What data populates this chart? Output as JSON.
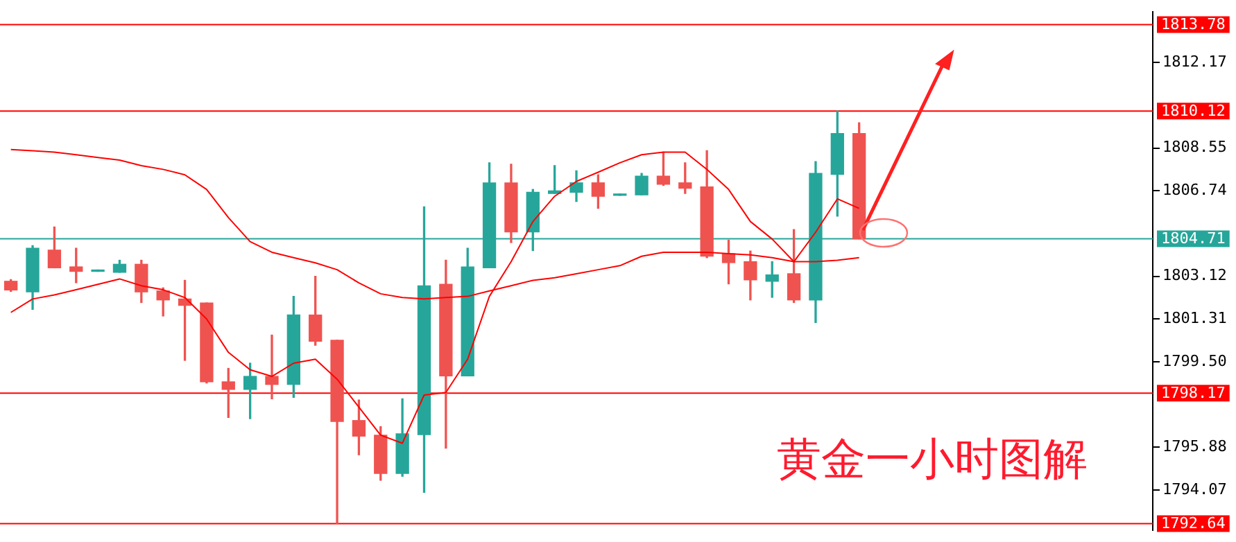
{
  "chart_data": {
    "type": "candlestick",
    "title": "黄金一小时图解",
    "categories": [
      null,
      null,
      null,
      null,
      null,
      null,
      null,
      null,
      null,
      null,
      null,
      null,
      null,
      null,
      null,
      null,
      null,
      null,
      null,
      null,
      null,
      null,
      null,
      null,
      null,
      null,
      null,
      null,
      null,
      null,
      null,
      null,
      null,
      null,
      null,
      null,
      null,
      null,
      null,
      null,
      null,
      null,
      null,
      null,
      null,
      null,
      null,
      null,
      null,
      null,
      null,
      null,
      null
    ],
    "ohlc": [
      [
        1802.91,
        1802.98,
        1802.48,
        1802.54
      ],
      [
        1802.46,
        1804.42,
        1801.72,
        1804.31
      ],
      [
        1804.23,
        1805.21,
        1803.48,
        1803.48
      ],
      [
        1803.52,
        1804.31,
        1802.85,
        1803.33
      ],
      [
        1803.33,
        1803.33,
        1803.33,
        1803.33
      ],
      [
        1803.29,
        1803.8,
        1803.29,
        1803.63
      ],
      [
        1803.63,
        1803.8,
        1802.01,
        1802.46
      ],
      [
        1802.5,
        1802.63,
        1801.44,
        1802.12
      ],
      [
        1802.16,
        1802.95,
        1799.56,
        1801.89
      ],
      [
        1801.99,
        1801.99,
        1798.6,
        1798.65
      ],
      [
        1798.65,
        1799.22,
        1797.14,
        1798.33
      ],
      [
        1798.33,
        1799.44,
        1797.09,
        1798.88
      ],
      [
        1798.88,
        1800.63,
        1797.93,
        1798.54
      ],
      [
        1798.54,
        1802.27,
        1797.99,
        1801.48
      ],
      [
        1801.48,
        1803.12,
        1800.2,
        1800.37
      ],
      [
        1800.41,
        1800.41,
        1792.64,
        1796.97
      ],
      [
        1797.01,
        1797.88,
        1795.56,
        1796.35
      ],
      [
        1796.39,
        1796.75,
        1794.48,
        1794.77
      ],
      [
        1794.77,
        1797.93,
        1794.65,
        1796.45
      ],
      [
        1796.41,
        1806.06,
        1793.97,
        1802.72
      ],
      [
        1802.78,
        1803.8,
        1795.84,
        1798.9
      ],
      [
        1798.9,
        1804.31,
        1798.9,
        1803.52
      ],
      [
        1803.48,
        1807.93,
        1803.48,
        1807.08
      ],
      [
        1807.08,
        1807.87,
        1804.55,
        1805.0
      ],
      [
        1805.0,
        1806.8,
        1804.21,
        1806.68
      ],
      [
        1806.63,
        1807.81,
        1806.63,
        1806.74
      ],
      [
        1806.68,
        1807.59,
        1806.29,
        1807.08
      ],
      [
        1807.08,
        1807.42,
        1806.0,
        1806.51
      ],
      [
        1806.55,
        1806.55,
        1806.55,
        1806.55
      ],
      [
        1806.57,
        1807.48,
        1806.57,
        1807.36
      ],
      [
        1807.36,
        1808.38,
        1806.97,
        1807.02
      ],
      [
        1807.08,
        1807.93,
        1806.63,
        1806.85
      ],
      [
        1806.91,
        1808.44,
        1803.91,
        1803.97
      ],
      [
        1804.08,
        1804.65,
        1802.8,
        1803.7
      ],
      [
        1803.74,
        1804.19,
        1802.12,
        1802.97
      ],
      [
        1802.91,
        1803.74,
        1802.23,
        1803.18
      ],
      [
        1803.23,
        1805.1,
        1802.01,
        1802.12
      ],
      [
        1802.12,
        1807.98,
        1801.16,
        1807.48
      ],
      [
        1807.44,
        1810.12,
        1805.67,
        1809.17
      ],
      [
        1809.17,
        1809.62,
        1804.71,
        1804.71
      ],
      null,
      null,
      null,
      null,
      null,
      null,
      null,
      null,
      null,
      null,
      null,
      null,
      null
    ],
    "colors": [
      "#ef5350",
      "#26a69a",
      "#ef5350",
      "#ef5350",
      "#26a69a",
      "#26a69a",
      "#ef5350",
      "#ef5350",
      "#ef5350",
      "#ef5350",
      "#ef5350",
      "#26a69a",
      "#ef5350",
      "#26a69a",
      "#ef5350",
      "#ef5350",
      "#ef5350",
      "#ef5350",
      "#26a69a",
      "#26a69a",
      "#ef5350",
      "#26a69a",
      "#26a69a",
      "#ef5350",
      "#26a69a",
      "#26a69a",
      "#26a69a",
      "#ef5350",
      "#26a69a",
      "#26a69a",
      "#ef5350",
      "#ef5350",
      "#ef5350",
      "#ef5350",
      "#ef5350",
      "#26a69a",
      "#ef5350",
      "#26a69a",
      "#26a69a",
      "#ef5350",
      null,
      null,
      null,
      null,
      null,
      null,
      null,
      null,
      null,
      null,
      null,
      null,
      null
    ],
    "series": [
      {
        "type": "line",
        "color": "#ff0000",
        "values": [
          1808.49,
          1808.44,
          1808.38,
          1808.27,
          1808.15,
          1808.04,
          1807.81,
          1807.65,
          1807.42,
          1806.8,
          1805.61,
          1804.59,
          1804.14,
          1803.91,
          1803.69,
          1803.4,
          1802.84,
          1802.38,
          1802.22,
          1802.16,
          1802.22,
          1802.27,
          1802.5,
          1802.72,
          1802.95,
          1803.06,
          1803.23,
          1803.4,
          1803.57,
          1803.97,
          1804.14,
          1804.14,
          1804.14,
          1804.08,
          1804.03,
          1803.91,
          1803.74,
          1803.74,
          1803.8,
          1803.91,
          null,
          null,
          null,
          null,
          null,
          null,
          null,
          null,
          null,
          null,
          null,
          null,
          null
        ]
      },
      {
        "type": "line",
        "color": "#ff0000",
        "values": [
          1801.59,
          1802.16,
          1802.33,
          1802.55,
          1802.78,
          1803.01,
          1802.72,
          1802.55,
          1802.22,
          1801.31,
          1799.9,
          1799.16,
          1798.88,
          1799.44,
          1799.61,
          1798.76,
          1797.58,
          1796.39,
          1796.05,
          1798.09,
          1798.2,
          1799.61,
          1802.27,
          1803.74,
          1805.44,
          1806.51,
          1807.14,
          1807.53,
          1807.93,
          1808.27,
          1808.38,
          1808.38,
          1807.65,
          1806.8,
          1805.44,
          1804.7,
          1803.74,
          1804.99,
          1806.4,
          1806.0,
          null,
          null,
          null,
          null,
          null,
          null,
          null,
          null,
          null,
          null,
          null,
          null,
          null
        ]
      }
    ],
    "ref_lines": [
      {
        "axis": "y",
        "value": 1813.78,
        "label": "1813.78",
        "color": "#ff0000"
      },
      {
        "axis": "y",
        "value": 1810.12,
        "label": "1810.12",
        "color": "#ff0000"
      },
      {
        "axis": "y",
        "value": 1804.71,
        "label": "1804.71",
        "color": "#26a69a"
      },
      {
        "axis": "y",
        "value": 1798.17,
        "label": "1798.17",
        "color": "#ff0000"
      },
      {
        "axis": "y",
        "value": 1792.64,
        "label": "1792.64",
        "color": "#ff0000"
      }
    ],
    "ylim": [
      1792.37,
      1814.32
    ],
    "yticks": [
      1812.17,
      1808.55,
      1806.74,
      1803.12,
      1801.31,
      {
        "value": 1799.5,
        "label": "1799.50"
      },
      1795.88,
      1794.07
    ],
    "grid": false,
    "legend": false,
    "tick_labels": "y"
  }
}
